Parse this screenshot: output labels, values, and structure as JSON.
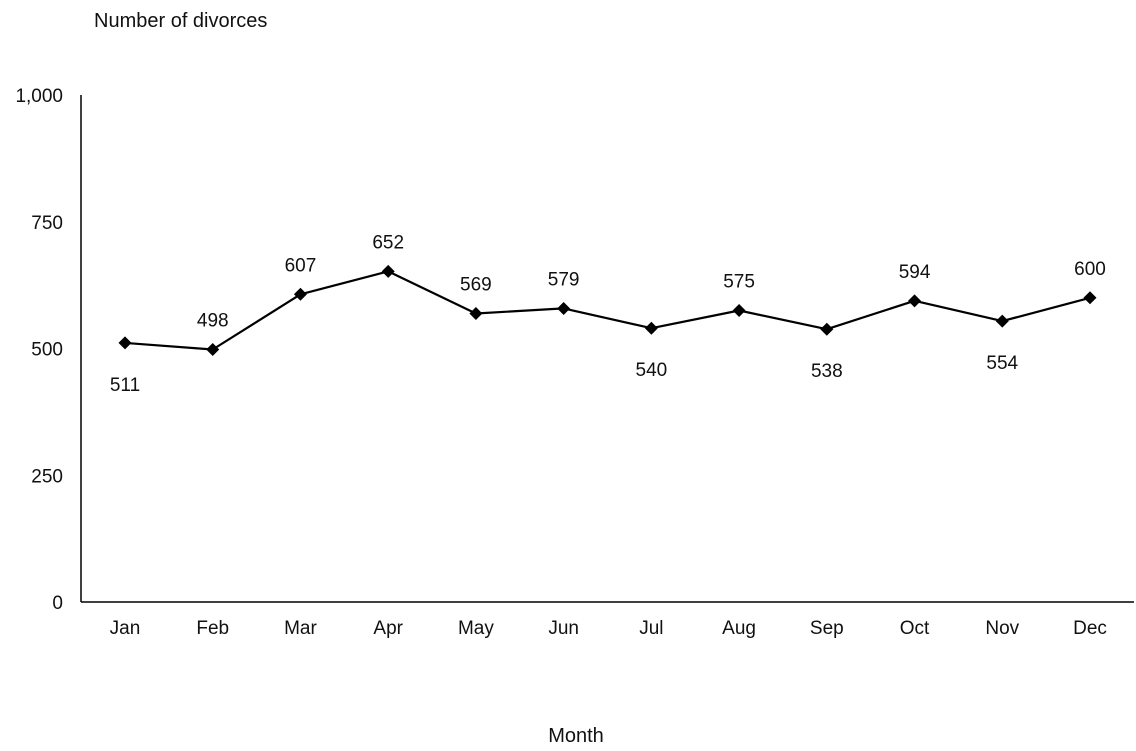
{
  "chart_data": {
    "type": "line",
    "title": "",
    "ylabel": "Number of divorces",
    "xlabel": "Month",
    "categories": [
      "Jan",
      "Feb",
      "Mar",
      "Apr",
      "May",
      "Jun",
      "Jul",
      "Aug",
      "Sep",
      "Oct",
      "Nov",
      "Dec"
    ],
    "values": [
      511,
      498,
      607,
      652,
      569,
      579,
      540,
      575,
      538,
      594,
      554,
      600
    ],
    "label_position": [
      "below",
      "above",
      "above",
      "above",
      "above",
      "above",
      "below",
      "above",
      "below",
      "above",
      "below",
      "above"
    ],
    "ylim": [
      0,
      1000
    ],
    "yticks": [
      0,
      250,
      500,
      750,
      1000
    ],
    "ytick_labels": [
      "0",
      "250",
      "500",
      "750",
      "1,000"
    ],
    "grid": false,
    "marker": "diamond",
    "line_color": "#000000",
    "legend": "none"
  }
}
